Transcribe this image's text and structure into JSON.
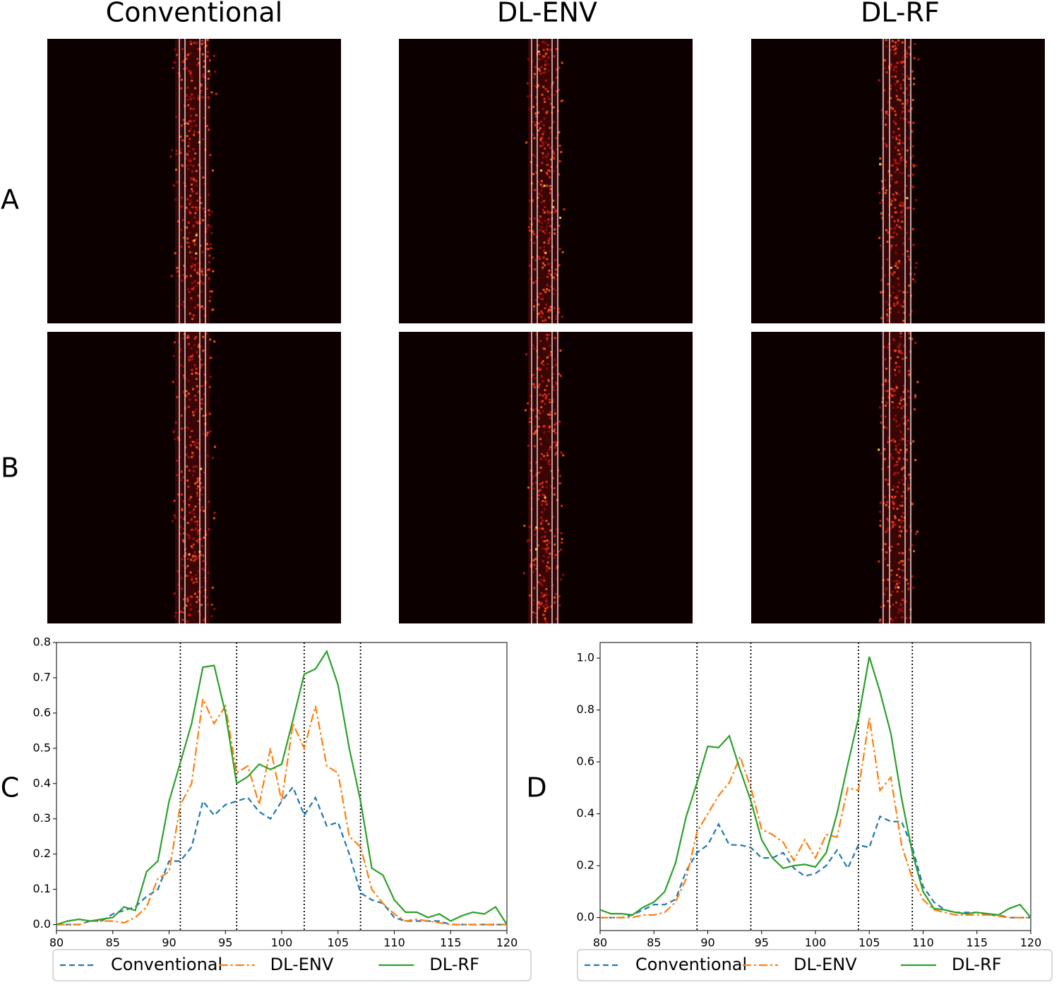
{
  "column_titles": [
    "Conventional",
    "DL-ENV",
    "DL-RF"
  ],
  "panel_labels": [
    "A",
    "B",
    "C",
    "D"
  ],
  "chart_data": [
    {
      "type": "line",
      "x": [
        80,
        81,
        82,
        83,
        84,
        85,
        86,
        87,
        88,
        89,
        90,
        91,
        92,
        93,
        94,
        95,
        96,
        97,
        98,
        99,
        100,
        101,
        102,
        103,
        104,
        105,
        106,
        107,
        108,
        109,
        110,
        111,
        112,
        113,
        114,
        115,
        116,
        117,
        118,
        119,
        120
      ],
      "xlim": [
        80,
        120
      ],
      "xticks": [
        80,
        85,
        90,
        95,
        100,
        105,
        110,
        115,
        120
      ],
      "ylim": [
        -0.017,
        0.8
      ],
      "yticks": [
        {
          "value": 0,
          "label": "0.0"
        },
        0.1,
        0.2,
        0.3,
        0.4,
        0.5,
        0.6,
        0.7,
        0.8
      ],
      "vlines": [
        91,
        96,
        102,
        107
      ],
      "legend": "bottom",
      "series": [
        {
          "name": "Conventional",
          "color": "#1f77b4",
          "dash": "dashed",
          "values": [
            0,
            0,
            0,
            0.01,
            0.01,
            0.03,
            0.04,
            0.05,
            0.08,
            0.1,
            0.18,
            0.18,
            0.22,
            0.35,
            0.31,
            0.34,
            0.35,
            0.36,
            0.32,
            0.3,
            0.35,
            0.39,
            0.31,
            0.36,
            0.28,
            0.29,
            0.2,
            0.09,
            0.07,
            0.06,
            0.02,
            0.01,
            0.01,
            0.01,
            0.01,
            0,
            0,
            0,
            0,
            0,
            0
          ]
        },
        {
          "name": "DL-ENV",
          "color": "#ff7f0e",
          "dash": "dashdot",
          "values": [
            0,
            0,
            0,
            0.01,
            0.01,
            0.01,
            0.005,
            0.02,
            0.05,
            0.13,
            0.15,
            0.34,
            0.4,
            0.64,
            0.57,
            0.62,
            0.43,
            0.45,
            0.34,
            0.5,
            0.35,
            0.57,
            0.5,
            0.62,
            0.45,
            0.43,
            0.25,
            0.22,
            0.1,
            0.06,
            0.03,
            0.01,
            0.015,
            0.01,
            0.005,
            0,
            0,
            0,
            0,
            0,
            0
          ]
        },
        {
          "name": "DL-RF",
          "color": "#2ca02c",
          "dash": "solid",
          "values": [
            0,
            0.01,
            0.015,
            0.01,
            0.015,
            0.02,
            0.05,
            0.04,
            0.15,
            0.18,
            0.35,
            0.46,
            0.57,
            0.73,
            0.735,
            0.6,
            0.4,
            0.42,
            0.455,
            0.44,
            0.455,
            0.58,
            0.71,
            0.725,
            0.775,
            0.68,
            0.5,
            0.35,
            0.16,
            0.14,
            0.07,
            0.035,
            0.035,
            0.02,
            0.03,
            0.01,
            0.025,
            0.035,
            0.03,
            0.05,
            0
          ]
        }
      ]
    },
    {
      "type": "line",
      "x": [
        80,
        81,
        82,
        83,
        84,
        85,
        86,
        87,
        88,
        89,
        90,
        91,
        92,
        93,
        94,
        95,
        96,
        97,
        98,
        99,
        100,
        101,
        102,
        103,
        104,
        105,
        106,
        107,
        108,
        109,
        110,
        111,
        112,
        113,
        114,
        115,
        116,
        117,
        118,
        119,
        120
      ],
      "xlim": [
        80,
        120
      ],
      "xticks": [
        80,
        85,
        90,
        95,
        100,
        105,
        110,
        115,
        120
      ],
      "ylim": [
        -0.05,
        1.06
      ],
      "yticks": [
        {
          "value": 0,
          "label": "0.0"
        },
        0.2,
        0.4,
        0.6,
        0.8,
        {
          "value": 1,
          "label": "1.0"
        }
      ],
      "vlines": [
        89,
        94,
        104,
        109
      ],
      "legend": "bottom",
      "series": [
        {
          "name": "Conventional",
          "color": "#1f77b4",
          "dash": "dashed",
          "values": [
            0,
            0,
            0,
            0.01,
            0.03,
            0.05,
            0.05,
            0.07,
            0.18,
            0.25,
            0.28,
            0.36,
            0.28,
            0.28,
            0.27,
            0.23,
            0.23,
            0.25,
            0.19,
            0.16,
            0.17,
            0.2,
            0.26,
            0.19,
            0.28,
            0.27,
            0.39,
            0.37,
            0.37,
            0.27,
            0.12,
            0.06,
            0.03,
            0.02,
            0.02,
            0.02,
            0.01,
            0.01,
            0,
            0,
            0
          ]
        },
        {
          "name": "DL-ENV",
          "color": "#ff7f0e",
          "dash": "dashdot",
          "values": [
            0,
            0,
            0,
            0,
            0.01,
            0.01,
            0.02,
            0.06,
            0.15,
            0.33,
            0.4,
            0.47,
            0.52,
            0.62,
            0.5,
            0.34,
            0.32,
            0.29,
            0.22,
            0.3,
            0.23,
            0.32,
            0.31,
            0.5,
            0.49,
            0.77,
            0.49,
            0.54,
            0.28,
            0.15,
            0.07,
            0.03,
            0.02,
            0.01,
            0.01,
            0.01,
            0.01,
            0.005,
            0,
            0,
            0
          ]
        },
        {
          "name": "DL-RF",
          "color": "#2ca02c",
          "dash": "solid",
          "values": [
            0.03,
            0.015,
            0.015,
            0.01,
            0.04,
            0.06,
            0.1,
            0.21,
            0.39,
            0.52,
            0.66,
            0.655,
            0.7,
            0.57,
            0.45,
            0.3,
            0.23,
            0.19,
            0.2,
            0.205,
            0.195,
            0.25,
            0.4,
            0.59,
            0.77,
            1.005,
            0.87,
            0.71,
            0.46,
            0.25,
            0.1,
            0.035,
            0.03,
            0.02,
            0.015,
            0.02,
            0.015,
            0.01,
            0.035,
            0.05,
            0
          ]
        }
      ]
    }
  ]
}
